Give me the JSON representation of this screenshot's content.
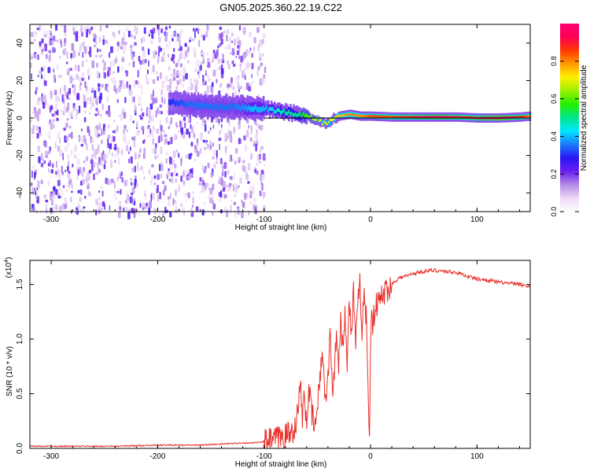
{
  "title": "GN05.2025.360.22.19.C22",
  "colors": {
    "snr_line": "#e8302a",
    "axis": "#000000",
    "frame": "#000000",
    "colorbar_stops": [
      "#ffffff",
      "#ecd8f6",
      "#b58be8",
      "#6a1ff0",
      "#2a16f5",
      "#1a7af8",
      "#00e6ff",
      "#00e68a",
      "#23f000",
      "#9af000",
      "#fff000",
      "#ff9a00",
      "#ff3a00",
      "#ff0055",
      "#ff0070"
    ]
  },
  "chart_data": [
    {
      "type": "heatmap",
      "title": "GN05.2025.360.22.19.C22",
      "xlabel": "Height of straight line (km)",
      "ylabel": "Frequency (Hz)",
      "xlim": [
        -320,
        150
      ],
      "ylim": [
        -50,
        50
      ],
      "xticks": [
        -300,
        -200,
        -100,
        0,
        100
      ],
      "xtick_labels": [
        "-300",
        "-200",
        "-100",
        "0",
        "100"
      ],
      "yticks": [
        -40,
        -20,
        0,
        20,
        40
      ],
      "ytick_labels": [
        "-40",
        "-20",
        "0",
        "20",
        "40"
      ],
      "colorbar": {
        "label": "Normalized spectral amplitude",
        "range": [
          0,
          1
        ],
        "ticks": [
          0.0,
          0.2,
          0.4,
          0.6,
          0.8
        ],
        "tick_labels": [
          "0.0",
          "0.2",
          "0.4",
          "0.6",
          "0.8"
        ]
      },
      "noise_region_km": [
        -320,
        -100
      ],
      "signal_track": {
        "x": [
          -190,
          -170,
          -150,
          -130,
          -110,
          -100,
          -90,
          -80,
          -70,
          -60,
          -50,
          -45,
          -40,
          -30,
          -20,
          -10,
          0,
          20,
          40,
          60,
          80,
          100,
          120,
          140,
          150
        ],
        "freq": [
          8,
          7,
          6,
          6,
          5,
          5,
          4,
          3,
          2,
          1,
          -1,
          -3,
          -2,
          1,
          2,
          1,
          1,
          0.5,
          0.5,
          0.5,
          0.5,
          0,
          0,
          0.5,
          1
        ],
        "amplitude": [
          0.3,
          0.35,
          0.35,
          0.35,
          0.4,
          0.4,
          0.45,
          0.5,
          0.5,
          0.6,
          0.7,
          0.7,
          0.7,
          0.75,
          0.8,
          0.8,
          0.85,
          0.85,
          0.9,
          0.95,
          0.9,
          0.9,
          1.0,
          0.9,
          0.8
        ]
      }
    },
    {
      "type": "line",
      "xlabel": "Height of straight line (km)",
      "ylabel": "SNR (10 * v/v)",
      "scale_label": "(x10",
      "scale_exponent": "4",
      "scale_close": ")",
      "xlim": [
        -320,
        150
      ],
      "ylim": [
        0,
        1.72
      ],
      "xticks": [
        -300,
        -200,
        -100,
        0,
        100
      ],
      "xtick_labels": [
        "-300",
        "-200",
        "-100",
        "0",
        "100"
      ],
      "yticks": [
        0.0,
        0.5,
        1.0,
        1.5
      ],
      "ytick_labels": [
        "0.0",
        "0.5",
        "1.0",
        "1.5"
      ],
      "series": [
        {
          "name": "SNR",
          "x": [
            -320,
            -280,
            -240,
            -200,
            -160,
            -140,
            -120,
            -110,
            -100,
            -95,
            -90,
            -85,
            -80,
            -75,
            -72,
            -70,
            -68,
            -66,
            -64,
            -62,
            -60,
            -58,
            -55,
            -52,
            -50,
            -48,
            -45,
            -42,
            -40,
            -38,
            -35,
            -32,
            -30,
            -28,
            -26,
            -24,
            -22,
            -20,
            -18,
            -16,
            -14,
            -12,
            -10,
            -8,
            -6,
            -4,
            -2,
            -1,
            0,
            1,
            2,
            5,
            10,
            15,
            20,
            25,
            30,
            35,
            40,
            50,
            60,
            70,
            80,
            90,
            100,
            110,
            120,
            130,
            140,
            150
          ],
          "values": [
            0.02,
            0.02,
            0.02,
            0.03,
            0.03,
            0.04,
            0.05,
            0.05,
            0.06,
            0.07,
            0.08,
            0.1,
            0.12,
            0.14,
            0.18,
            0.25,
            0.35,
            0.6,
            0.3,
            0.45,
            0.25,
            0.55,
            0.3,
            0.2,
            0.35,
            0.6,
            0.9,
            0.4,
            0.7,
            1.0,
            0.5,
            1.05,
            0.8,
            1.2,
            0.9,
            1.3,
            0.7,
            1.4,
            1.0,
            1.45,
            0.9,
            1.3,
            1.5,
            1.1,
            1.4,
            1.2,
            0.45,
            0.05,
            1.0,
            1.25,
            1.15,
            1.3,
            1.38,
            1.45,
            1.5,
            1.55,
            1.57,
            1.58,
            1.6,
            1.62,
            1.63,
            1.62,
            1.61,
            1.58,
            1.55,
            1.54,
            1.52,
            1.51,
            1.5,
            1.48
          ]
        }
      ]
    }
  ]
}
